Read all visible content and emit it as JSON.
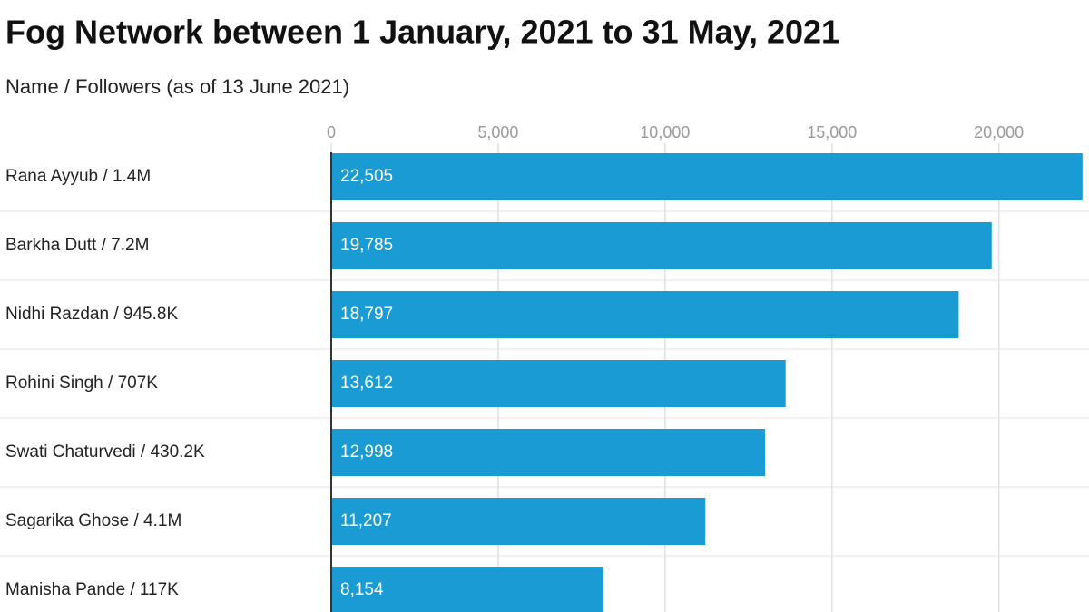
{
  "chart_data": {
    "type": "bar",
    "orientation": "horizontal",
    "title": "Fog Network between 1 January, 2021 to 31 May, 2021",
    "subtitle": "Name / Followers (as of 13 June 2021)",
    "categories": [
      "Rana Ayyub / 1.4M",
      "Barkha Dutt / 7.2M",
      "Nidhi Razdan / 945.8K",
      "Rohini Singh / 707K",
      "Swati Chaturvedi / 430.2K",
      "Sagarika Ghose / 4.1M",
      "Manisha Pande / 117K"
    ],
    "values": [
      22505,
      19785,
      18797,
      13612,
      12998,
      11207,
      8154
    ],
    "value_labels": [
      "22,505",
      "19,785",
      "18,797",
      "13,612",
      "12,998",
      "11,207",
      "8,154"
    ],
    "color": "#1a9bd4",
    "xlim": [
      0,
      22700
    ],
    "xticks": [
      0,
      {
        "value": 5000,
        "label": "5,000"
      },
      {
        "value": 10000,
        "label": "10,000"
      },
      {
        "value": 15000,
        "label": "15,000"
      },
      {
        "value": 20000,
        "label": "20,000"
      }
    ],
    "grid": true
  }
}
